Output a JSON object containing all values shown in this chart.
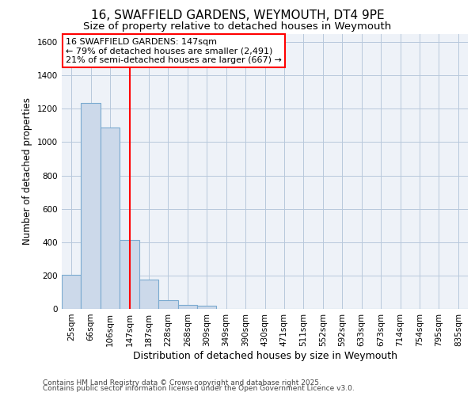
{
  "title_line1": "16, SWAFFIELD GARDENS, WEYMOUTH, DT4 9PE",
  "title_line2": "Size of property relative to detached houses in Weymouth",
  "xlabel": "Distribution of detached houses by size in Weymouth",
  "ylabel": "Number of detached properties",
  "categories": [
    "25sqm",
    "66sqm",
    "106sqm",
    "147sqm",
    "187sqm",
    "228sqm",
    "268sqm",
    "309sqm",
    "349sqm",
    "390sqm",
    "430sqm",
    "471sqm",
    "511sqm",
    "552sqm",
    "592sqm",
    "633sqm",
    "673sqm",
    "714sqm",
    "754sqm",
    "795sqm",
    "835sqm"
  ],
  "values": [
    205,
    1235,
    1085,
    415,
    175,
    50,
    25,
    20,
    0,
    0,
    0,
    0,
    0,
    0,
    0,
    0,
    0,
    0,
    0,
    0,
    0
  ],
  "bar_color": "#ccd9ea",
  "bar_edge_color": "#7aaad0",
  "vline_x_index": 3,
  "vline_color": "red",
  "annotation_text": "16 SWAFFIELD GARDENS: 147sqm\n← 79% of detached houses are smaller (2,491)\n21% of semi-detached houses are larger (667) →",
  "annotation_box_color": "red",
  "ylim": [
    0,
    1650
  ],
  "yticks": [
    0,
    200,
    400,
    600,
    800,
    1000,
    1200,
    1400,
    1600
  ],
  "grid_color": "#b8c8dc",
  "background_color": "#eef2f8",
  "footer_line1": "Contains HM Land Registry data © Crown copyright and database right 2025.",
  "footer_line2": "Contains public sector information licensed under the Open Government Licence v3.0.",
  "title_fontsize": 11,
  "subtitle_fontsize": 9.5,
  "tick_fontsize": 7.5,
  "ylabel_fontsize": 8.5,
  "xlabel_fontsize": 9,
  "annotation_fontsize": 8,
  "footer_fontsize": 6.5
}
